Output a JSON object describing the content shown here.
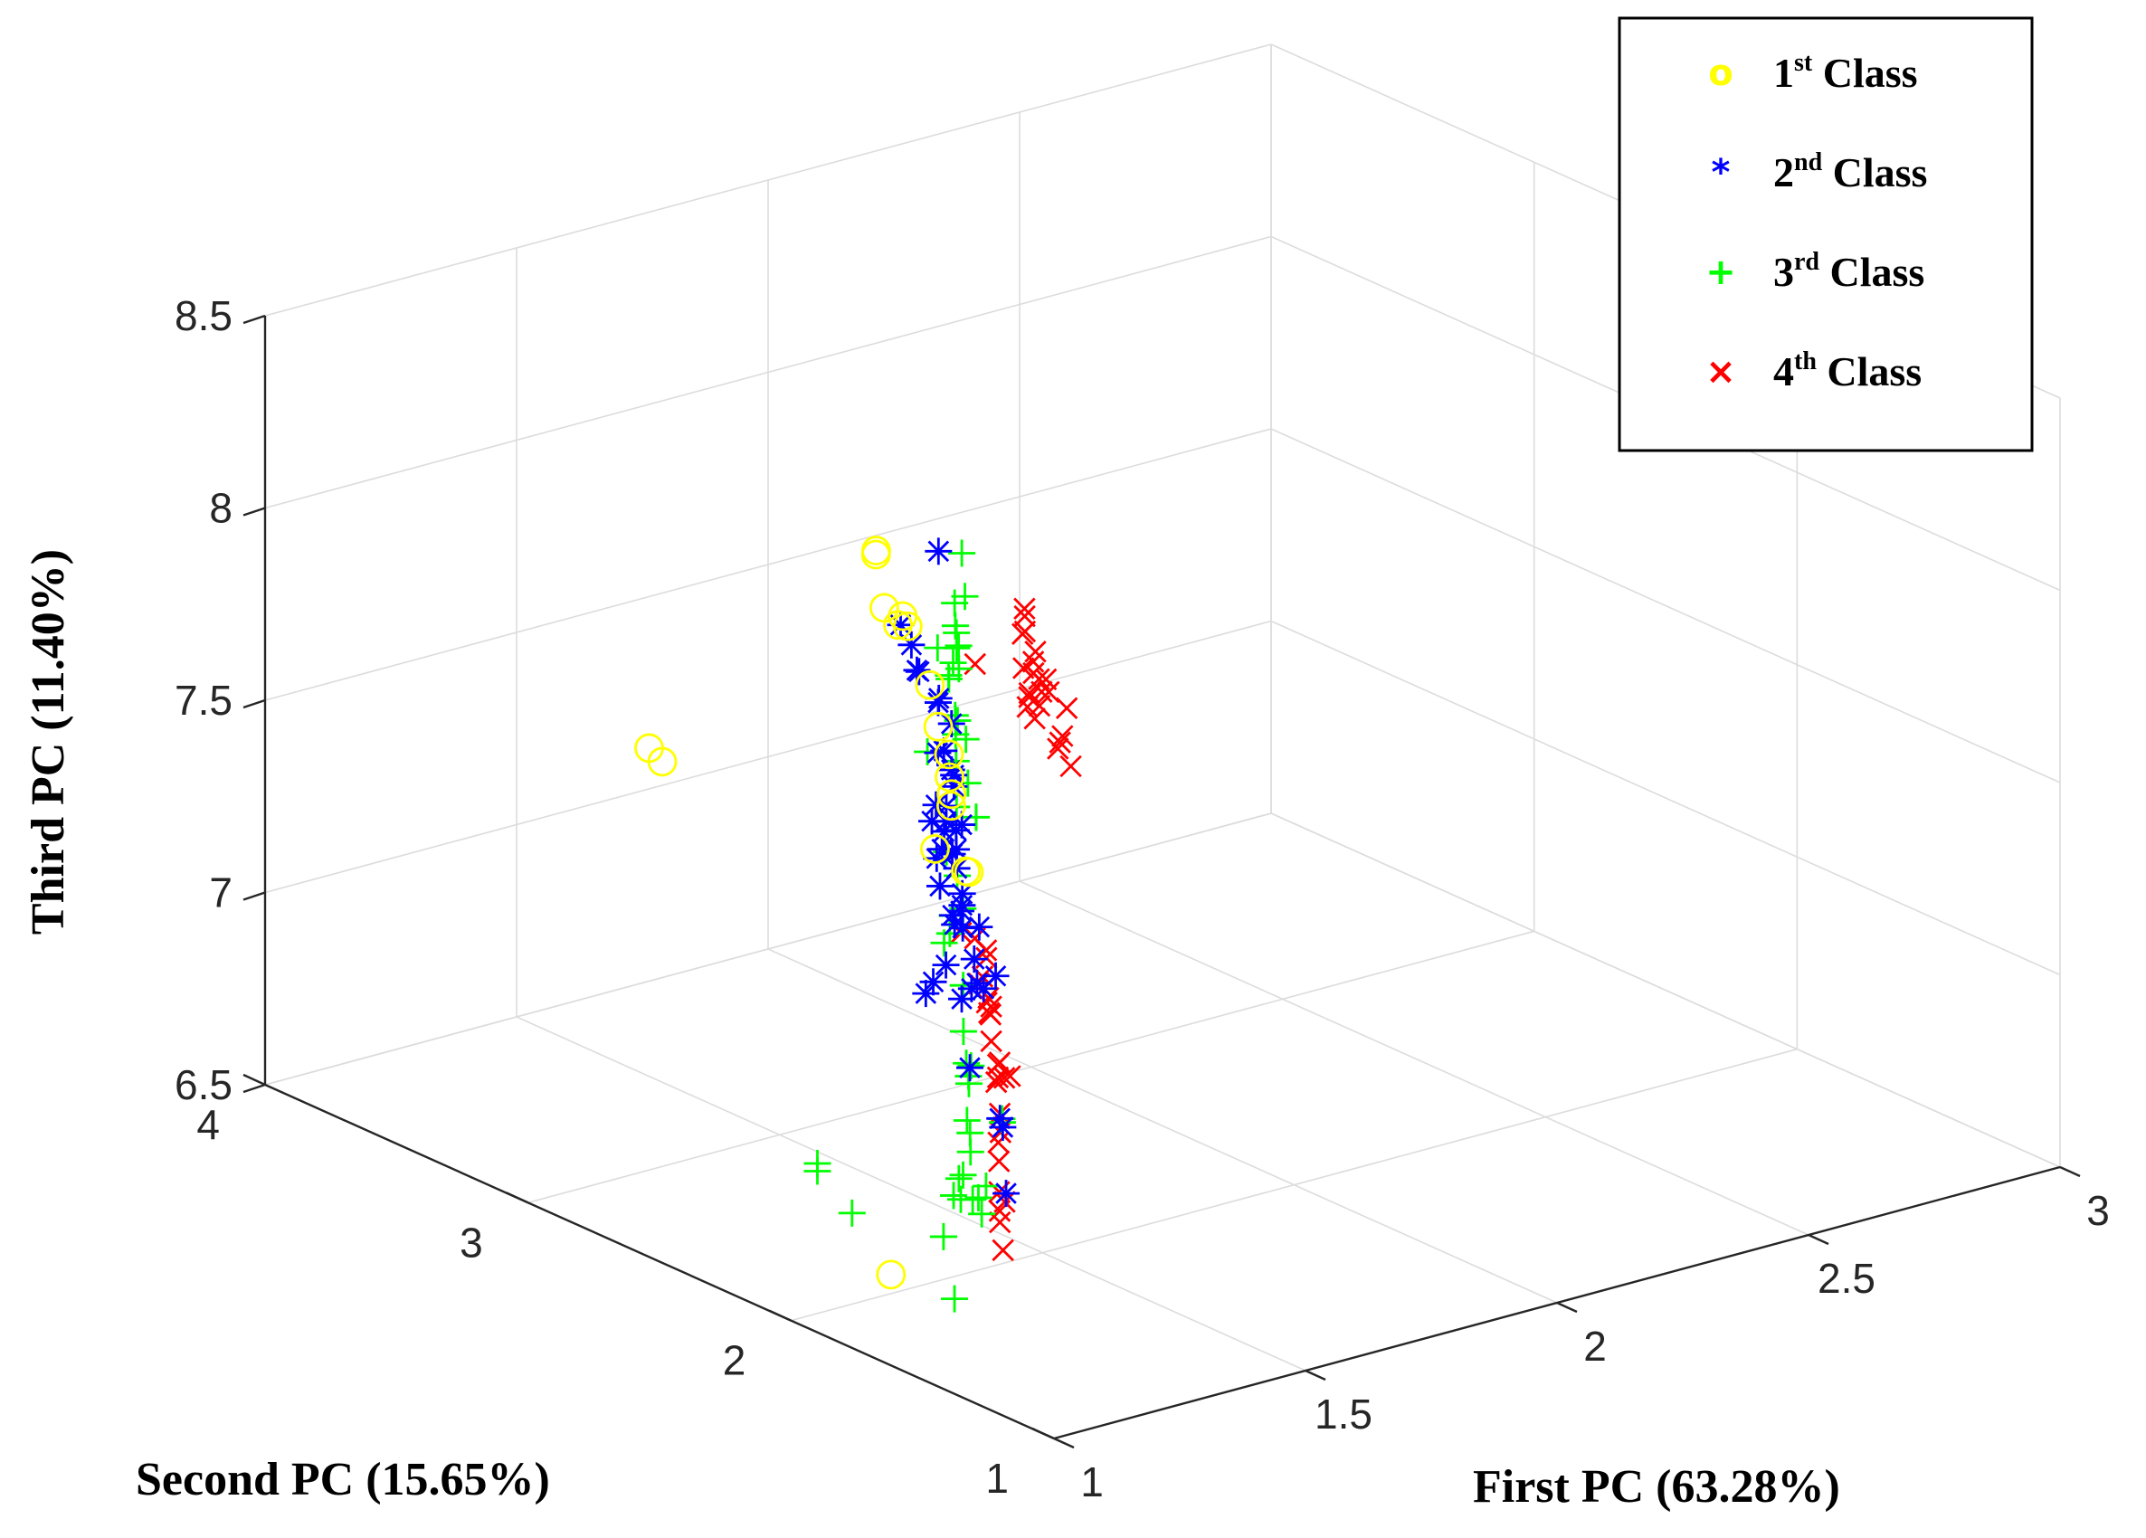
{
  "chart_data": {
    "type": "scatter3d",
    "title": "",
    "xlabel": "First PC (63.28%)",
    "ylabel": "Second PC (15.65%)",
    "zlabel": "Third PC (11.40%)",
    "xlim": [
      1,
      3
    ],
    "ylim": [
      1,
      4
    ],
    "zlim": [
      6.5,
      8.5
    ],
    "xticks": [
      "1",
      "1.5",
      "2",
      "2.5",
      "3"
    ],
    "yticks": [
      "1",
      "2",
      "3",
      "4"
    ],
    "zticks": [
      "6.5",
      "7",
      "7.5",
      "8",
      "8.5"
    ],
    "grid": true,
    "legend_position": "top-right",
    "legend": [
      {
        "symbol": "o",
        "ordinal": "1",
        "suffix": "st",
        "label": "Class"
      },
      {
        "symbol": "*",
        "ordinal": "2",
        "suffix": "nd",
        "label": "Class"
      },
      {
        "symbol": "+",
        "ordinal": "3",
        "suffix": "rd",
        "label": "Class"
      },
      {
        "symbol": "×",
        "ordinal": "4",
        "suffix": "th",
        "label": "Class"
      }
    ],
    "series": [
      {
        "name": "1st Class",
        "marker": "o",
        "color": "#ffff00",
        "points": [
          [
            1.31,
            2.27,
            8.3
          ],
          [
            1.3,
            2.25,
            8.32
          ],
          [
            1.29,
            2.2,
            8.19
          ],
          [
            1.29,
            2.13,
            8.19
          ],
          [
            1.27,
            2.11,
            8.18
          ],
          [
            1.3,
            2.13,
            8.16
          ],
          [
            1.25,
            1.95,
            8.08
          ],
          [
            1.23,
            1.88,
            8.0
          ],
          [
            1.22,
            1.82,
            7.95
          ],
          [
            1.2,
            1.78,
            7.91
          ],
          [
            1.23,
            1.83,
            7.84
          ],
          [
            1.24,
            1.85,
            7.8
          ],
          [
            1.27,
            1.84,
            7.62
          ],
          [
            1.29,
            1.89,
            7.6
          ],
          [
            1.26,
            1.95,
            7.65
          ],
          [
            1.11,
            2.75,
            7.72
          ],
          [
            1.11,
            2.7,
            7.7
          ],
          [
            1.23,
            2.06,
            6.52
          ]
        ]
      },
      {
        "name": "2nd Class",
        "marker": "*",
        "color": "#0000ff",
        "points": [
          [
            1.45,
            2.3,
            8.25
          ],
          [
            1.38,
            2.31,
            8.08
          ],
          [
            1.37,
            2.25,
            8.05
          ],
          [
            1.32,
            2.05,
            7.99
          ],
          [
            1.36,
            2.21,
            8.0
          ],
          [
            1.38,
            2.24,
            7.98
          ],
          [
            1.35,
            2.11,
            7.95
          ],
          [
            1.34,
            2.04,
            7.92
          ],
          [
            1.33,
            2.05,
            7.85
          ],
          [
            1.34,
            2.04,
            7.8
          ],
          [
            1.36,
            2.07,
            7.77
          ],
          [
            1.35,
            2.05,
            7.75
          ],
          [
            1.37,
            2.15,
            7.8
          ],
          [
            1.34,
            2.06,
            7.7
          ],
          [
            1.35,
            2.08,
            7.65
          ],
          [
            1.35,
            2.02,
            7.66
          ],
          [
            1.37,
            2.08,
            7.62
          ],
          [
            1.36,
            2.06,
            7.58
          ],
          [
            1.34,
            2.02,
            7.55
          ],
          [
            1.33,
            1.98,
            7.5
          ],
          [
            1.34,
            2.0,
            7.46
          ],
          [
            1.32,
            1.99,
            7.42
          ],
          [
            1.31,
            1.94,
            7.43
          ],
          [
            1.29,
            1.94,
            7.47
          ],
          [
            1.28,
            1.89,
            7.5
          ],
          [
            1.28,
            1.82,
            7.48
          ],
          [
            1.27,
            1.82,
            7.4
          ],
          [
            1.26,
            1.79,
            7.35
          ],
          [
            1.27,
            1.83,
            7.32
          ],
          [
            1.24,
            1.81,
            7.31
          ],
          [
            1.23,
            1.76,
            7.15
          ],
          [
            1.25,
            1.7,
            7.4
          ],
          [
            1.2,
            1.65,
            7.4
          ],
          [
            1.18,
            1.55,
            7.1
          ],
          [
            1.17,
            1.52,
            7.09
          ],
          [
            1.14,
            1.45,
            6.95
          ],
          [
            1.2,
            1.87,
            7.32
          ],
          [
            1.22,
            1.88,
            7.34
          ],
          [
            1.24,
            1.87,
            7.38
          ],
          [
            1.27,
            1.95,
            7.55
          ],
          [
            1.3,
            2.0,
            7.62
          ],
          [
            1.31,
            1.98,
            7.61
          ],
          [
            1.3,
            2.02,
            7.59
          ],
          [
            1.32,
            2.03,
            7.65
          ],
          [
            1.33,
            2.08,
            7.7
          ],
          [
            1.28,
            2.0,
            7.7
          ]
        ]
      },
      {
        "name": "3rd Class",
        "marker": "+",
        "color": "#00ff00",
        "points": [
          [
            1.58,
            2.46,
            8.15
          ],
          [
            1.56,
            2.41,
            8.06
          ],
          [
            1.55,
            2.43,
            8.04
          ],
          [
            1.52,
            2.37,
            8.01
          ],
          [
            1.49,
            2.3,
            7.99
          ],
          [
            1.47,
            2.27,
            8.04
          ],
          [
            1.46,
            2.25,
            8.01
          ],
          [
            1.45,
            2.26,
            7.93
          ],
          [
            1.48,
            2.28,
            7.94
          ],
          [
            1.4,
            2.1,
            7.84
          ],
          [
            1.42,
            2.17,
            7.86
          ],
          [
            1.41,
            2.16,
            7.88
          ],
          [
            1.39,
            2.12,
            7.85
          ],
          [
            1.36,
            2.17,
            7.8
          ],
          [
            1.37,
            2.08,
            7.8
          ],
          [
            1.42,
            2.1,
            7.63
          ],
          [
            1.41,
            2.08,
            7.64
          ],
          [
            1.43,
            2.15,
            7.7
          ],
          [
            1.49,
            2.38,
            7.96
          ],
          [
            1.5,
            2.34,
            7.93
          ],
          [
            1.47,
            2.3,
            7.92
          ],
          [
            1.35,
            2.04,
            7.7
          ],
          [
            1.33,
            2.04,
            7.59
          ],
          [
            1.32,
            1.98,
            7.55
          ],
          [
            1.3,
            1.92,
            7.49
          ],
          [
            1.31,
            1.98,
            7.45
          ],
          [
            1.3,
            1.97,
            7.41
          ],
          [
            1.32,
            2.03,
            7.36
          ],
          [
            1.29,
            1.9,
            7.3
          ],
          [
            1.28,
            1.88,
            7.19
          ],
          [
            1.27,
            1.85,
            7.12
          ],
          [
            1.29,
            1.87,
            7.1
          ],
          [
            1.29,
            1.88,
            7.07
          ],
          [
            1.27,
            1.84,
            7.07
          ],
          [
            1.24,
            1.79,
            7.0
          ],
          [
            1.22,
            1.74,
            6.99
          ],
          [
            1.2,
            1.7,
            6.96
          ],
          [
            1.18,
            1.69,
            6.91
          ],
          [
            1.17,
            1.6,
            6.84
          ],
          [
            1.21,
            1.66,
            6.88
          ],
          [
            1.2,
            1.67,
            6.85
          ],
          [
            1.22,
            1.73,
            6.82
          ],
          [
            1.25,
            1.84,
            6.83
          ],
          [
            1.25,
            1.86,
            6.78
          ],
          [
            1.28,
            1.89,
            6.75
          ],
          [
            1.23,
            1.86,
            6.68
          ],
          [
            1.21,
            1.78,
            6.55
          ],
          [
            1.34,
            2.55,
            6.62
          ],
          [
            1.34,
            2.55,
            6.6
          ],
          [
            1.32,
            2.38,
            6.55
          ],
          [
            1.32,
            1.81,
            6.97
          ],
          [
            1.3,
            1.77,
            6.98
          ]
        ]
      },
      {
        "name": "4th Class",
        "marker": "×",
        "color": "#ff0000",
        "points": [
          [
            1.58,
            2.22,
            8.02
          ],
          [
            1.59,
            2.24,
            8.05
          ],
          [
            1.56,
            2.15,
            7.97
          ],
          [
            1.55,
            2.13,
            7.95
          ],
          [
            1.57,
            2.21,
            8.02
          ],
          [
            1.6,
            2.26,
            8.06
          ],
          [
            1.58,
            2.18,
            7.98
          ],
          [
            1.54,
            2.08,
            7.92
          ],
          [
            1.52,
            2.05,
            7.9
          ],
          [
            1.54,
            2.09,
            7.95
          ],
          [
            1.53,
            2.13,
            7.97
          ],
          [
            1.51,
            2.07,
            7.92
          ],
          [
            1.5,
            2.03,
            7.88
          ],
          [
            1.52,
            1.98,
            7.81
          ],
          [
            1.53,
            1.95,
            7.77
          ],
          [
            1.55,
            2.02,
            7.82
          ],
          [
            1.54,
            2.01,
            7.81
          ],
          [
            1.58,
            2.14,
            7.92
          ],
          [
            1.57,
            2.11,
            7.9
          ],
          [
            1.59,
            2.08,
            7.86
          ],
          [
            1.46,
            2.18,
            7.99
          ],
          [
            1.5,
            2.05,
            7.94
          ],
          [
            1.47,
            2.0,
            7.93
          ],
          [
            1.32,
            1.87,
            7.39
          ],
          [
            1.31,
            1.85,
            7.38
          ],
          [
            1.35,
            1.97,
            7.38
          ],
          [
            1.38,
            2.08,
            7.35
          ],
          [
            1.37,
            1.98,
            7.27
          ],
          [
            1.34,
            1.9,
            7.25
          ],
          [
            1.31,
            1.84,
            7.24
          ],
          [
            1.33,
            1.87,
            7.24
          ],
          [
            1.36,
            1.93,
            7.19
          ],
          [
            1.41,
            2.04,
            7.17
          ],
          [
            1.41,
            2.07,
            7.21
          ],
          [
            1.33,
            1.87,
            7.15
          ],
          [
            1.31,
            1.76,
            7.1
          ],
          [
            1.27,
            1.73,
            7.12
          ],
          [
            1.33,
            1.82,
            7.07
          ],
          [
            1.34,
            1.87,
            7.04
          ],
          [
            1.38,
            1.94,
            7.05
          ],
          [
            1.42,
            2.01,
            7.02
          ],
          [
            1.3,
            1.78,
            7.0
          ],
          [
            1.27,
            1.72,
            6.98
          ],
          [
            1.25,
            1.69,
            6.97
          ],
          [
            1.22,
            1.63,
            6.95
          ],
          [
            1.21,
            1.61,
            6.88
          ],
          [
            1.2,
            1.57,
            6.87
          ],
          [
            1.19,
            1.57,
            6.85
          ],
          [
            1.18,
            1.55,
            6.83
          ],
          [
            1.16,
            1.5,
            6.78
          ]
        ]
      }
    ]
  }
}
